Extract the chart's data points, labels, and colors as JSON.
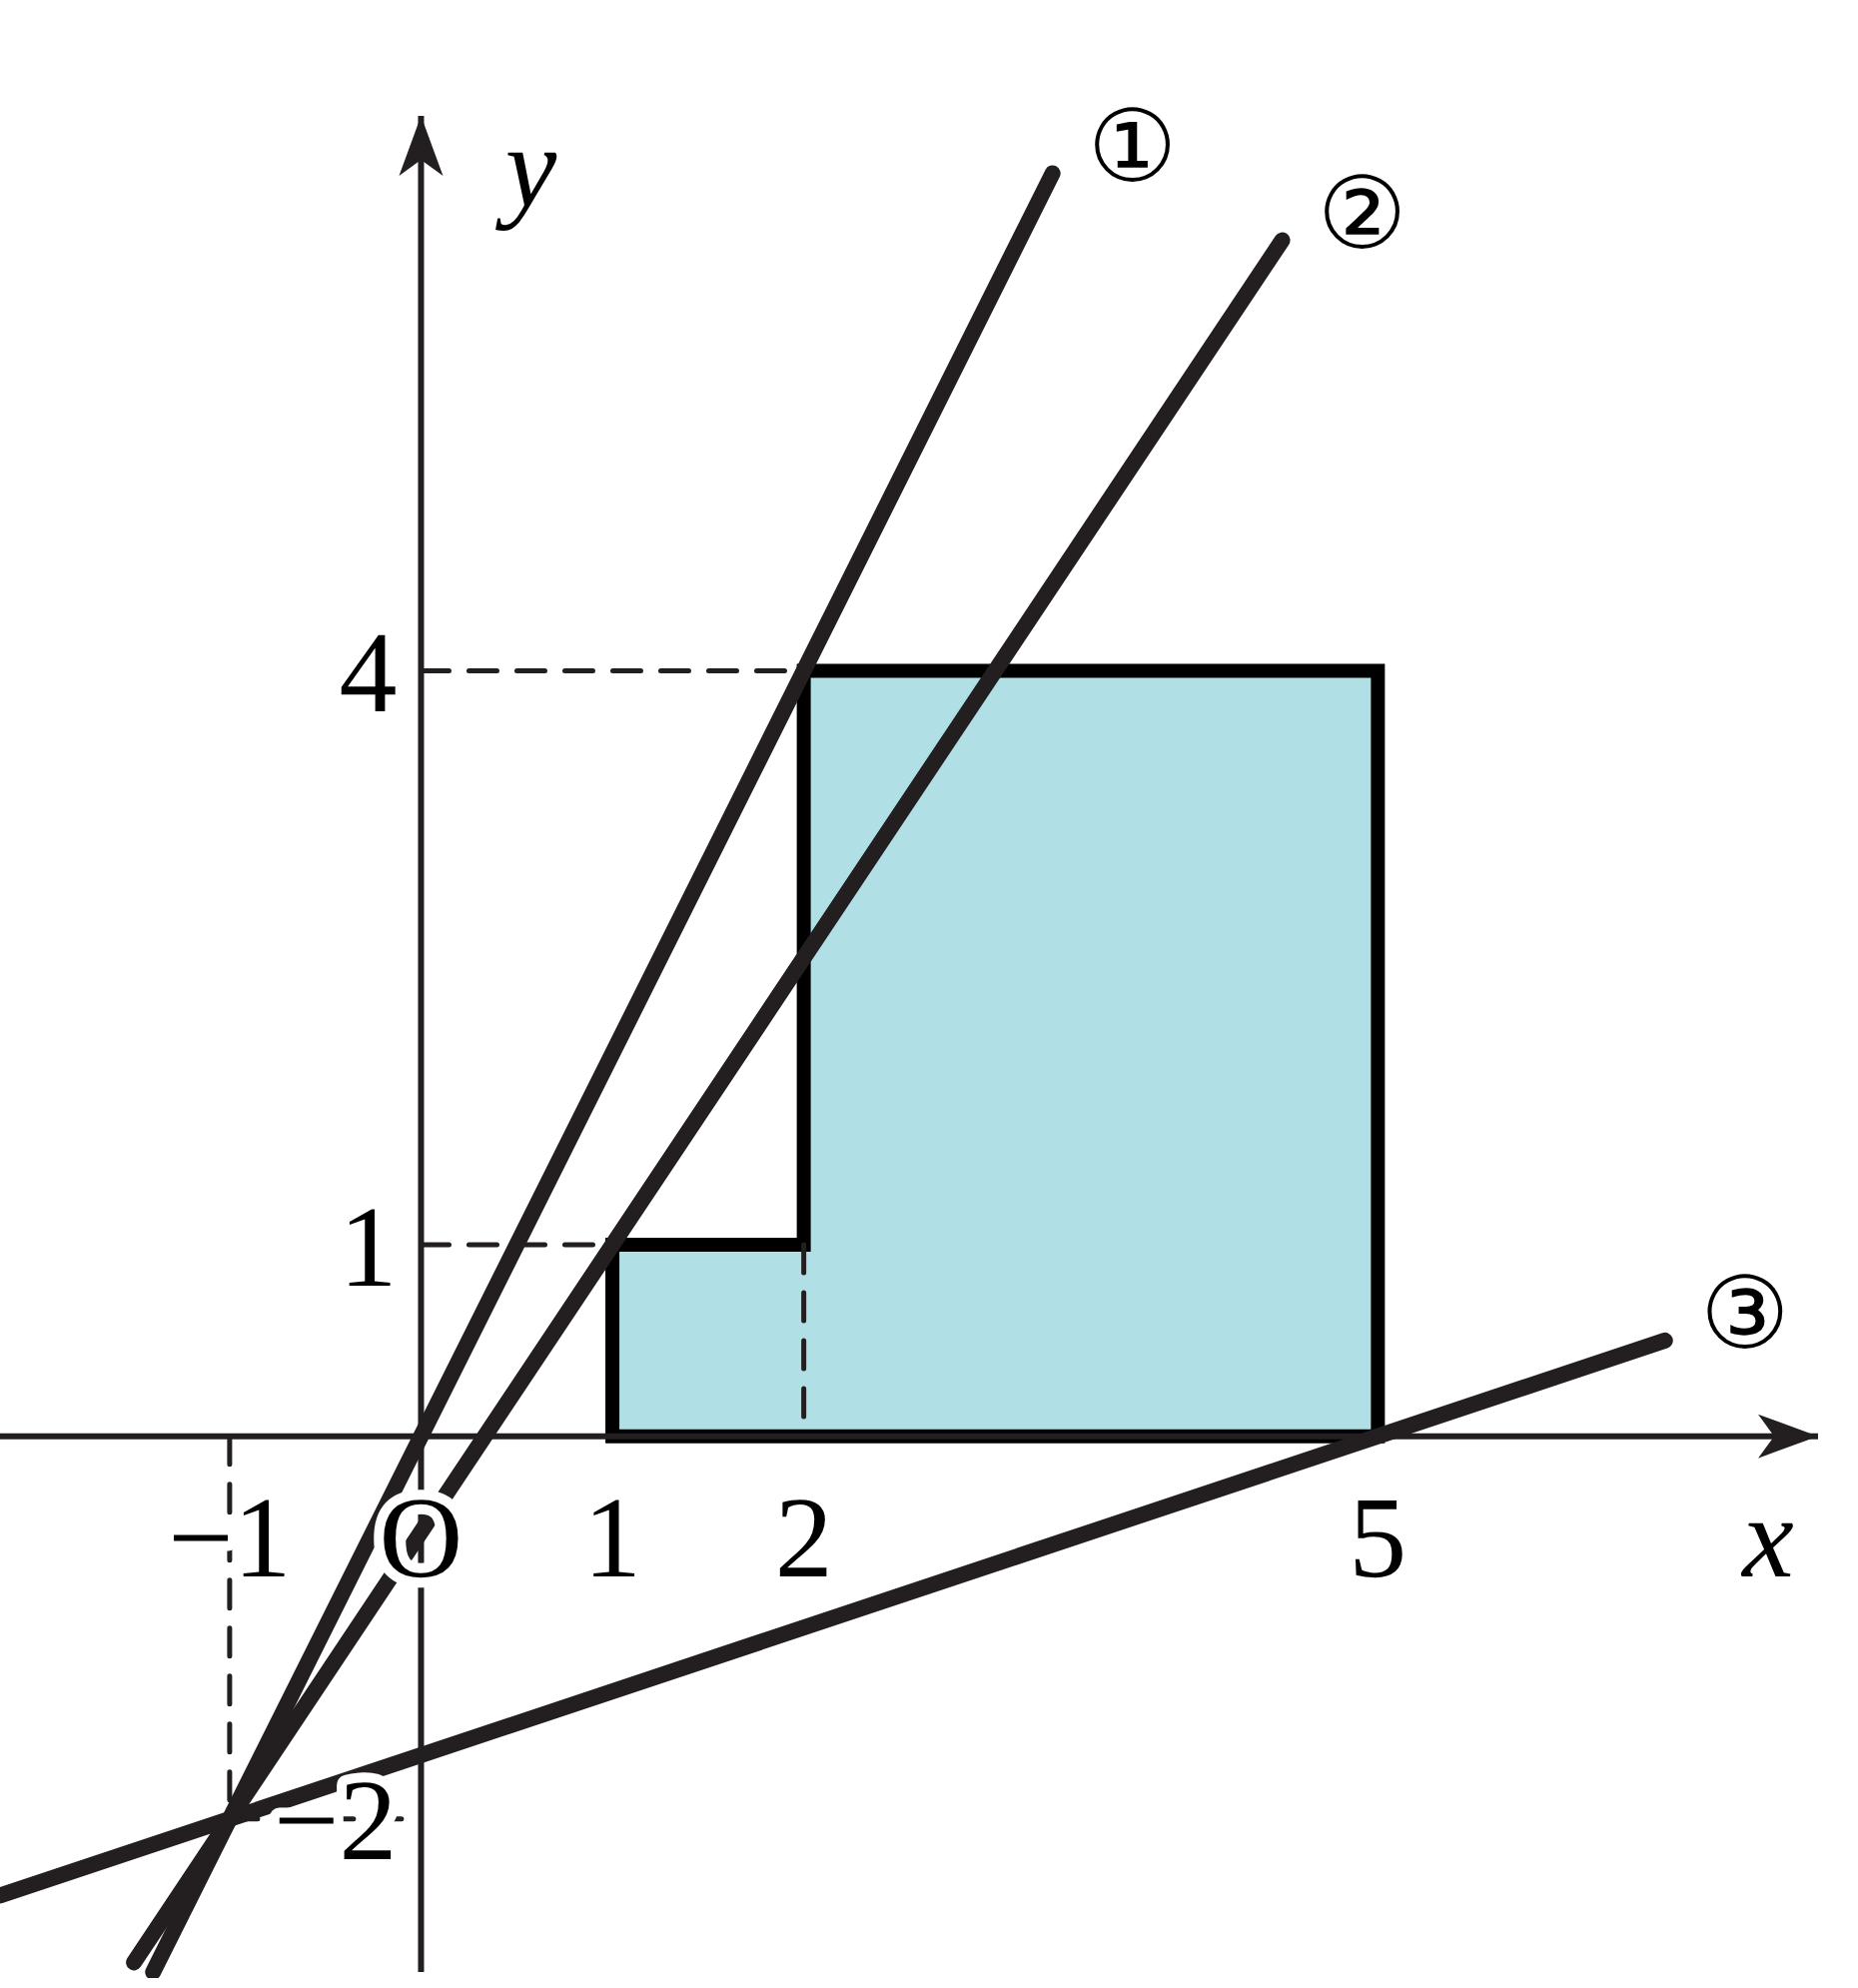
{
  "chart_data": {
    "type": "line",
    "xlabel": "x",
    "ylabel": "y",
    "xlim": [
      -2.2,
      7.3
    ],
    "ylim": [
      -2.8,
      6.9
    ],
    "xticks": [
      {
        "value": -1,
        "label": "−1"
      },
      {
        "value": 0,
        "label": "O"
      },
      1,
      2,
      5
    ],
    "yticks": [
      {
        "value": -2,
        "label": "−2"
      },
      1,
      4
    ],
    "tick_labels": "xy",
    "series": [
      {
        "type": "area",
        "color": "#b0dfe5",
        "x": [
          1,
          1,
          2,
          2,
          5,
          5
        ],
        "values": [
          0,
          1,
          1,
          4,
          4,
          0
        ]
      },
      {
        "name": "①",
        "color": "#231f20",
        "x": [
          -1.4,
          3.3
        ],
        "values": [
          -2.8,
          6.6
        ]
      },
      {
        "name": "②",
        "color": "#231f20",
        "x": [
          -1.5,
          4.5
        ],
        "values": [
          -2.75,
          6.25
        ]
      },
      {
        "name": "③",
        "color": "#231f20",
        "x": [
          -2.2,
          6.5
        ],
        "values": [
          -2.4,
          0.5
        ]
      },
      {
        "color": "#231f20",
        "line_style": "dashed",
        "x": [
          0,
          2
        ],
        "values": [
          4,
          4
        ]
      },
      {
        "color": "#231f20",
        "line_style": "dashed",
        "x": [
          0,
          1
        ],
        "values": [
          1,
          1
        ]
      },
      {
        "color": "#231f20",
        "line_style": "dashed",
        "x": [
          2,
          2
        ],
        "values": [
          1,
          0
        ]
      },
      {
        "color": "#231f20",
        "line_style": "dashed",
        "x": [
          -1,
          -1
        ],
        "values": [
          0,
          -2
        ]
      },
      {
        "color": "#231f20",
        "line_style": "dashed",
        "x": [
          -1,
          0
        ],
        "values": [
          -2,
          -2
        ]
      }
    ]
  }
}
